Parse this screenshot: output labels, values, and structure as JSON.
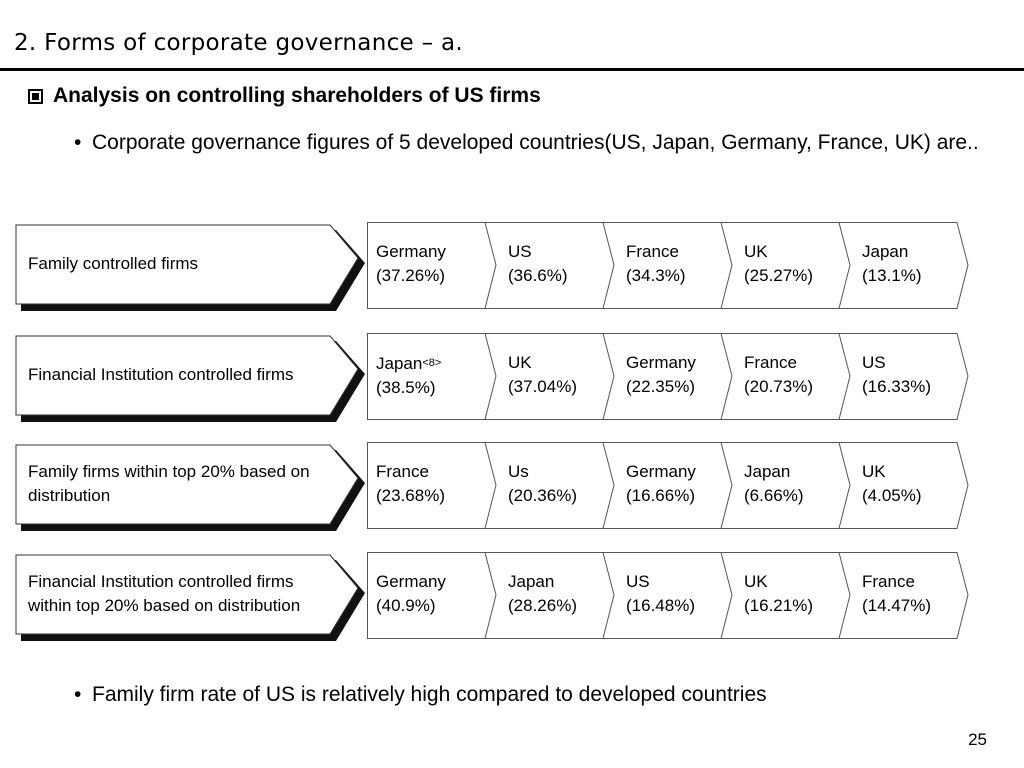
{
  "slide": {
    "title": "2. Forms of corporate governance – a.",
    "heading": "Analysis on controlling shareholders of US firms",
    "bullet_intro": "Corporate governance figures of 5 developed countries(US, Japan, Germany, France, UK) are..",
    "bullet_conclusion": "Family firm rate of US is relatively high compared to developed countries",
    "page_number": "25"
  },
  "rows": [
    {
      "label": "Family controlled firms",
      "ranks": [
        {
          "country": "Germany",
          "value": "(37.26%)"
        },
        {
          "country": "US",
          "value": "(36.6%)"
        },
        {
          "country": "France",
          "value": "(34.3%)"
        },
        {
          "country": "UK",
          "value": "(25.27%)"
        },
        {
          "country": "Japan",
          "value": "(13.1%)"
        }
      ]
    },
    {
      "label": "Financial Institution controlled firms",
      "ranks": [
        {
          "country": "Japan",
          "note": "<8>",
          "value": "(38.5%)"
        },
        {
          "country": "UK",
          "value": "(37.04%)"
        },
        {
          "country": "Germany",
          "value": "(22.35%)"
        },
        {
          "country": "France",
          "value": "(20.73%)"
        },
        {
          "country": "US",
          "value": "(16.33%)"
        }
      ]
    },
    {
      "label": "Family firms within top 20% based on distribution",
      "ranks": [
        {
          "country": "France",
          "value": "(23.68%)"
        },
        {
          "country": "Us",
          "value": "(20.36%)"
        },
        {
          "country": "Germany",
          "value": "(16.66%)"
        },
        {
          "country": "Japan",
          "value": "(6.66%)"
        },
        {
          "country": "UK",
          "value": "(4.05%)"
        }
      ]
    },
    {
      "label": "Financial Institution controlled firms within top 20% based on distribution",
      "ranks": [
        {
          "country": "Germany",
          "value": "(40.9%)"
        },
        {
          "country": "Japan",
          "value": "(28.26%)"
        },
        {
          "country": "US",
          "value": "(16.48%)"
        },
        {
          "country": "UK",
          "value": "(16.21%)"
        },
        {
          "country": "France",
          "value": "(14.47%)"
        }
      ]
    }
  ]
}
